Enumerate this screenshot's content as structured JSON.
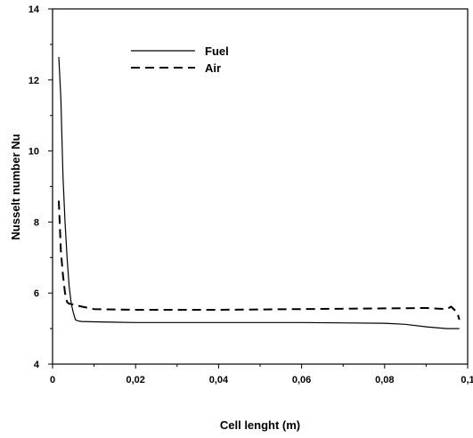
{
  "chart_data": {
    "type": "line",
    "xlabel": "Cell lenght (m)",
    "ylabel": "Nusselt number Nu",
    "xlim": [
      0,
      0.1
    ],
    "ylim": [
      4,
      14
    ],
    "x_ticks": [
      0,
      0.02,
      0.04,
      0.06,
      0.08,
      0.1
    ],
    "x_tick_labels": [
      "0",
      "0,02",
      "0,04",
      "0,06",
      "0,08",
      "0,1"
    ],
    "y_ticks": [
      4,
      6,
      8,
      10,
      12,
      14
    ],
    "y_tick_labels": [
      "4",
      "6",
      "8",
      "10",
      "12",
      "14"
    ],
    "grid": false,
    "legend_position": "upper-left",
    "series": [
      {
        "name": "Fuel",
        "style": "solid",
        "color": "#000000",
        "x": [
          0.0015,
          0.002,
          0.0025,
          0.003,
          0.0035,
          0.004,
          0.0045,
          0.005,
          0.0055,
          0.006,
          0.007,
          0.01,
          0.02,
          0.04,
          0.06,
          0.08,
          0.085,
          0.09,
          0.095,
          0.098
        ],
        "y": [
          12.65,
          11.5,
          9.3,
          8.0,
          7.0,
          6.2,
          5.7,
          5.45,
          5.25,
          5.22,
          5.2,
          5.19,
          5.17,
          5.17,
          5.17,
          5.15,
          5.12,
          5.05,
          5.0,
          5.0
        ]
      },
      {
        "name": "Air",
        "style": "dashed",
        "color": "#000000",
        "x": [
          0.0015,
          0.002,
          0.0025,
          0.003,
          0.0035,
          0.004,
          0.005,
          0.006,
          0.007,
          0.01,
          0.02,
          0.04,
          0.06,
          0.08,
          0.09,
          0.095,
          0.096,
          0.0975,
          0.098
        ],
        "y": [
          8.6,
          7.2,
          6.5,
          6.0,
          5.75,
          5.7,
          5.68,
          5.65,
          5.62,
          5.55,
          5.53,
          5.53,
          5.55,
          5.57,
          5.58,
          5.55,
          5.62,
          5.45,
          5.25
        ]
      }
    ]
  }
}
